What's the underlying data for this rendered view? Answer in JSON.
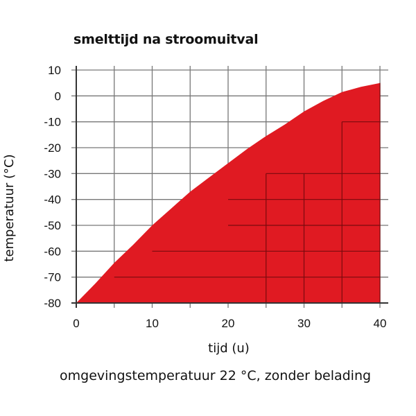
{
  "colors": {
    "fill": "#e01a22",
    "grid": "#777777",
    "axis": "#333333"
  },
  "chart_data": {
    "type": "area",
    "title": "smelttijd na stroomuitval",
    "xlabel": "tijd (u)",
    "ylabel": "temperatuur (°C)",
    "xlim": [
      0,
      40
    ],
    "ylim": [
      -80,
      10
    ],
    "xticks": [
      0,
      10,
      20,
      30,
      40
    ],
    "yticks": [
      10,
      0,
      -10,
      -20,
      -30,
      -40,
      -50,
      -60,
      -70,
      -80
    ],
    "grid": true,
    "series": [
      {
        "x": [
          0,
          1,
          2.5,
          5,
          7.5,
          10,
          12.5,
          15,
          17.5,
          20,
          22.5,
          25,
          27.5,
          30,
          32.5,
          35,
          37.5,
          40
        ],
        "y": [
          -80,
          -77,
          -72.5,
          -64.5,
          -57.5,
          -50,
          -43.5,
          -37,
          -31.5,
          -26,
          -20.5,
          -15.5,
          -11,
          -6,
          -2,
          1.5,
          3.5,
          5
        ]
      }
    ]
  },
  "caption": "omgevingstemperatuur 22 °C, zonder belading"
}
